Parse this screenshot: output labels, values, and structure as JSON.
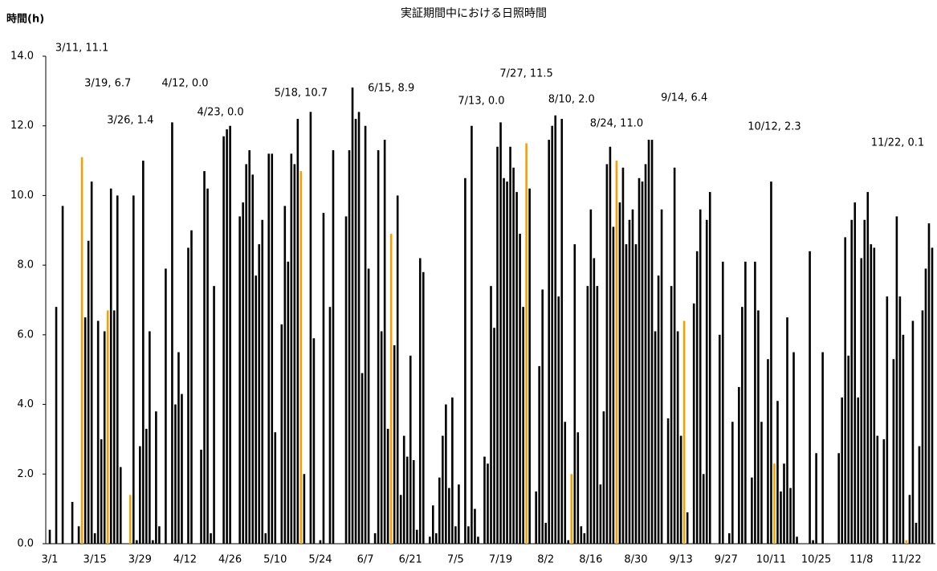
{
  "chart_data": {
    "type": "bar",
    "title": "実証期間中における日照時間",
    "y_label": "時間(h)",
    "color": "#000000",
    "highlight_color": "#f5a000",
    "ylim": [
      0,
      14
    ],
    "yticks": [
      {
        "value": 0,
        "label": "0.0"
      },
      {
        "value": 2,
        "label": "2.0"
      },
      {
        "value": 4,
        "label": "4.0"
      },
      {
        "value": 6,
        "label": "6.0"
      },
      {
        "value": 8,
        "label": "8.0"
      },
      {
        "value": 10,
        "label": "10.0"
      },
      {
        "value": 12,
        "label": "12.0"
      },
      {
        "value": 14,
        "label": "14.0"
      }
    ],
    "grid": false,
    "categories": [
      "3/1",
      null,
      null,
      null,
      null,
      null,
      null,
      null,
      null,
      null,
      null,
      null,
      null,
      null,
      "3/15",
      null,
      null,
      null,
      null,
      null,
      null,
      null,
      null,
      null,
      null,
      null,
      null,
      null,
      "3/29",
      null,
      null,
      null,
      null,
      null,
      null,
      null,
      null,
      null,
      null,
      null,
      null,
      null,
      "4/12",
      null,
      null,
      null,
      null,
      null,
      null,
      null,
      null,
      null,
      null,
      null,
      null,
      null,
      "4/26",
      null,
      null,
      null,
      null,
      null,
      null,
      null,
      null,
      null,
      null,
      null,
      null,
      null,
      "5/10",
      null,
      null,
      null,
      null,
      null,
      null,
      null,
      null,
      null,
      null,
      null,
      null,
      null,
      "5/24",
      null,
      null,
      null,
      null,
      null,
      null,
      null,
      null,
      null,
      null,
      null,
      null,
      null,
      "6/7",
      null,
      null,
      null,
      null,
      null,
      null,
      null,
      null,
      null,
      null,
      null,
      null,
      null,
      "6/21",
      null,
      null,
      null,
      null,
      null,
      null,
      null,
      null,
      null,
      null,
      null,
      null,
      null,
      "7/5",
      null,
      null,
      null,
      null,
      null,
      null,
      null,
      null,
      null,
      null,
      null,
      null,
      null,
      "7/19",
      null,
      null,
      null,
      null,
      null,
      null,
      null,
      null,
      null,
      null,
      null,
      null,
      null,
      "8/2",
      null,
      null,
      null,
      null,
      null,
      null,
      null,
      null,
      null,
      null,
      null,
      null,
      null,
      "8/16",
      null,
      null,
      null,
      null,
      null,
      null,
      null,
      null,
      null,
      null,
      null,
      null,
      null,
      "8/30",
      null,
      null,
      null,
      null,
      null,
      null,
      null,
      null,
      null,
      null,
      null,
      null,
      null,
      "9/13",
      null,
      null,
      null,
      null,
      null,
      null,
      null,
      null,
      null,
      null,
      null,
      null,
      null,
      "9/27",
      null,
      null,
      null,
      null,
      null,
      null,
      null,
      null,
      null,
      null,
      null,
      null,
      null,
      "10/11",
      null,
      null,
      null,
      null,
      null,
      null,
      null,
      null,
      null,
      null,
      null,
      null,
      null,
      "10/25",
      null,
      null,
      null,
      null,
      null,
      null,
      null,
      null,
      null,
      null,
      null,
      null,
      null,
      "11/8",
      null,
      null,
      null,
      null,
      null,
      null,
      null,
      null,
      null,
      null,
      null,
      null,
      null,
      "11/22",
      null,
      null,
      null,
      null,
      null,
      null,
      null,
      null
    ],
    "values": [
      0.4,
      0,
      6.8,
      0,
      9.7,
      0,
      0,
      1.2,
      0,
      0.5,
      11.1,
      6.5,
      8.7,
      10.4,
      0.3,
      6.4,
      3.0,
      6.1,
      6.7,
      10.2,
      6.7,
      10.0,
      2.2,
      0,
      0,
      1.4,
      10.0,
      0.1,
      2.8,
      11.0,
      3.3,
      6.1,
      0.1,
      3.8,
      0.5,
      0,
      7.9,
      0,
      12.1,
      4.0,
      5.5,
      4.3,
      0,
      8.5,
      9.0,
      0,
      0,
      2.7,
      10.7,
      10.2,
      0.3,
      7.4,
      0,
      0,
      11.7,
      11.9,
      12.0,
      0,
      0,
      9.4,
      9.8,
      10.9,
      11.3,
      10.6,
      7.7,
      8.6,
      9.3,
      0.3,
      11.2,
      11.2,
      3.2,
      0,
      6.3,
      9.7,
      8.1,
      11.2,
      10.9,
      12.2,
      10.7,
      2.0,
      0,
      12.4,
      5.9,
      0,
      0.1,
      9.5,
      0,
      6.8,
      11.3,
      0,
      0,
      0,
      9.4,
      11.3,
      13.1,
      12.2,
      12.4,
      4.9,
      12.0,
      7.9,
      0,
      0.3,
      11.3,
      6.1,
      11.6,
      3.3,
      8.9,
      5.7,
      10.0,
      1.4,
      3.1,
      2.5,
      5.4,
      2.4,
      0.4,
      8.2,
      7.8,
      0,
      0.2,
      1.1,
      0.3,
      1.9,
      3.1,
      4.0,
      1.6,
      4.2,
      0.5,
      1.7,
      0,
      10.5,
      0.5,
      12.0,
      1.0,
      0.2,
      0,
      2.5,
      2.3,
      7.4,
      6.2,
      11.4,
      12.1,
      10.5,
      10.4,
      11.4,
      10.8,
      10.1,
      8.9,
      6.8,
      11.5,
      10.2,
      0,
      1.5,
      5.1,
      7.3,
      0.6,
      11.6,
      12.0,
      12.3,
      7.1,
      12.2,
      3.5,
      0.1,
      2.0,
      8.6,
      3.2,
      0.5,
      0.3,
      7.4,
      9.6,
      8.2,
      7.4,
      1.7,
      3.8,
      10.9,
      11.4,
      9.1,
      11.0,
      9.8,
      10.8,
      8.6,
      9.3,
      9.6,
      8.6,
      10.5,
      10.4,
      10.9,
      11.6,
      11.6,
      6.1,
      7.7,
      9.6,
      0,
      3.6,
      7.4,
      10.8,
      6.1,
      3.1,
      6.4,
      0.9,
      0,
      6.9,
      8.4,
      9.6,
      2.0,
      9.3,
      10.1,
      0,
      0,
      6.0,
      8.1,
      0,
      0.3,
      3.5,
      0,
      4.5,
      6.8,
      8.1,
      0,
      1.9,
      8.1,
      6.7,
      3.5,
      0,
      5.3,
      10.4,
      2.3,
      4.1,
      1.5,
      2.3,
      6.5,
      1.6,
      5.5,
      0.2,
      0,
      0,
      0,
      8.4,
      0.1,
      2.6,
      0,
      5.5,
      0,
      0,
      0,
      0,
      2.6,
      4.2,
      8.8,
      5.4,
      9.3,
      9.8,
      4.2,
      8.2,
      9.3,
      10.1,
      8.6,
      8.5,
      3.1,
      0,
      3.0,
      7.1,
      0,
      5.3,
      9.4,
      7.1,
      6.0,
      0.1,
      1.4,
      6.4,
      0.6,
      2.8,
      6.7,
      7.9,
      9.2,
      8.5
    ],
    "value_labels": [
      null,
      null,
      null,
      null,
      null,
      null,
      null,
      null,
      null,
      null,
      "3/11, 11.1",
      null,
      null,
      null,
      null,
      null,
      null,
      null,
      "3/19, 6.7",
      null,
      null,
      null,
      null,
      null,
      null,
      "3/26, 1.4",
      null,
      null,
      null,
      null,
      null,
      null,
      null,
      null,
      null,
      null,
      null,
      null,
      null,
      null,
      null,
      null,
      "4/12, 0.0",
      null,
      null,
      null,
      null,
      null,
      null,
      null,
      null,
      null,
      null,
      "4/23, 0.0",
      null,
      null,
      null,
      null,
      null,
      null,
      null,
      null,
      null,
      null,
      null,
      null,
      null,
      null,
      null,
      null,
      null,
      null,
      null,
      null,
      null,
      null,
      null,
      null,
      "5/18, 10.7",
      null,
      null,
      null,
      null,
      null,
      null,
      null,
      null,
      null,
      null,
      null,
      null,
      null,
      null,
      null,
      null,
      null,
      null,
      null,
      null,
      null,
      null,
      null,
      null,
      null,
      null,
      null,
      "6/15, 8.9",
      null,
      null,
      null,
      null,
      null,
      null,
      null,
      null,
      null,
      null,
      null,
      null,
      null,
      null,
      null,
      null,
      null,
      null,
      null,
      null,
      null,
      null,
      null,
      null,
      null,
      null,
      null,
      "7/13, 0.0",
      null,
      null,
      null,
      null,
      null,
      null,
      null,
      null,
      null,
      null,
      null,
      null,
      null,
      "7/27, 11.5",
      null,
      null,
      null,
      null,
      null,
      null,
      null,
      null,
      null,
      null,
      null,
      null,
      null,
      "8/10, 2.0",
      null,
      null,
      null,
      null,
      null,
      null,
      null,
      null,
      null,
      null,
      null,
      null,
      null,
      "8/24, 11.0",
      null,
      null,
      null,
      null,
      null,
      null,
      null,
      null,
      null,
      null,
      null,
      null,
      null,
      null,
      null,
      null,
      null,
      null,
      null,
      null,
      "9/14, 6.4",
      null,
      null,
      null,
      null,
      null,
      null,
      null,
      null,
      null,
      null,
      null,
      null,
      null,
      null,
      null,
      null,
      null,
      null,
      null,
      null,
      null,
      null,
      null,
      null,
      null,
      null,
      null,
      "10/12, 2.3",
      null,
      null,
      null,
      null,
      null,
      null,
      null,
      null,
      null,
      null,
      null,
      null,
      null,
      null,
      null,
      null,
      null,
      null,
      null,
      null,
      null,
      null,
      null,
      null,
      null,
      null,
      null,
      null,
      null,
      null,
      null,
      null,
      null,
      null,
      null,
      null,
      null,
      null,
      null,
      null,
      "11/22, 0.1",
      null,
      null,
      null,
      null,
      null,
      null,
      null,
      null
    ]
  }
}
